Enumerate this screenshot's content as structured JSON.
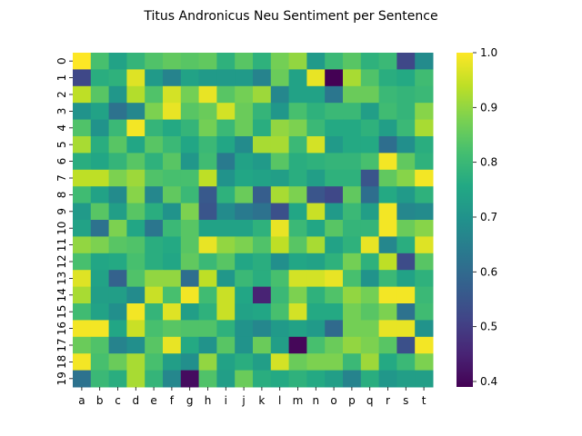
{
  "chart_data": {
    "type": "heatmap",
    "title": "Titus Andronicus Neu Sentiment per Sentence",
    "xlabel": "",
    "ylabel": "",
    "columns": [
      "a",
      "b",
      "c",
      "d",
      "e",
      "f",
      "g",
      "h",
      "i",
      "j",
      "k",
      "l",
      "m",
      "n",
      "o",
      "p",
      "q",
      "r",
      "s",
      "t"
    ],
    "rows": [
      "0",
      "1",
      "2",
      "3",
      "4",
      "5",
      "6",
      "7",
      "8",
      "9",
      "10",
      "11",
      "12",
      "13",
      "14",
      "15",
      "16",
      "17",
      "18",
      "19"
    ],
    "value_range": [
      0.39,
      1.0
    ],
    "colormap": "viridis",
    "colorbar_ticks": [
      "0.4",
      "0.5",
      "0.6",
      "0.7",
      "0.8",
      "0.9",
      "1.0"
    ],
    "colorbar_tick_values": [
      0.4,
      0.5,
      0.6,
      0.7,
      0.8,
      0.9,
      1.0
    ],
    "values": [
      [
        1.0,
        0.82,
        0.74,
        0.79,
        0.83,
        0.85,
        0.84,
        0.85,
        0.78,
        0.84,
        0.78,
        0.87,
        0.9,
        0.72,
        0.8,
        0.84,
        0.78,
        0.8,
        0.52,
        0.68
      ],
      [
        0.52,
        0.77,
        0.78,
        0.97,
        0.72,
        0.66,
        0.74,
        0.72,
        0.72,
        0.72,
        0.66,
        0.86,
        0.74,
        0.98,
        0.39,
        0.92,
        0.83,
        0.77,
        0.76,
        0.81
      ],
      [
        0.94,
        0.84,
        0.71,
        0.93,
        0.83,
        0.96,
        0.87,
        0.98,
        0.84,
        0.87,
        0.91,
        0.67,
        0.74,
        0.74,
        0.63,
        0.86,
        0.86,
        0.8,
        0.79,
        0.8
      ],
      [
        0.7,
        0.74,
        0.62,
        0.67,
        0.88,
        0.98,
        0.84,
        0.86,
        0.96,
        0.86,
        0.79,
        0.71,
        0.82,
        0.78,
        0.8,
        0.8,
        0.73,
        0.81,
        0.79,
        0.89
      ],
      [
        0.83,
        0.7,
        0.8,
        0.99,
        0.79,
        0.76,
        0.79,
        0.87,
        0.8,
        0.86,
        0.77,
        0.9,
        0.88,
        0.8,
        0.76,
        0.76,
        0.78,
        0.73,
        0.8,
        0.92
      ],
      [
        0.92,
        0.77,
        0.84,
        0.75,
        0.84,
        0.8,
        0.75,
        0.8,
        0.75,
        0.68,
        0.92,
        0.92,
        0.8,
        0.96,
        0.72,
        0.76,
        0.76,
        0.61,
        0.69,
        0.77
      ],
      [
        0.77,
        0.75,
        0.79,
        0.84,
        0.78,
        0.84,
        0.71,
        0.81,
        0.64,
        0.74,
        0.72,
        0.84,
        0.77,
        0.78,
        0.79,
        0.79,
        0.82,
        0.99,
        0.85,
        0.78
      ],
      [
        0.94,
        0.94,
        0.88,
        0.91,
        0.83,
        0.82,
        0.82,
        0.94,
        0.7,
        0.75,
        0.74,
        0.73,
        0.77,
        0.73,
        0.78,
        0.78,
        0.55,
        0.85,
        0.89,
        0.99
      ],
      [
        0.81,
        0.74,
        0.68,
        0.89,
        0.67,
        0.85,
        0.8,
        0.56,
        0.78,
        0.86,
        0.57,
        0.92,
        0.88,
        0.55,
        0.52,
        0.85,
        0.61,
        0.76,
        0.72,
        0.78
      ],
      [
        0.72,
        0.84,
        0.73,
        0.84,
        0.77,
        0.7,
        0.88,
        0.55,
        0.68,
        0.64,
        0.62,
        0.54,
        0.75,
        0.95,
        0.72,
        0.8,
        0.73,
        0.99,
        0.67,
        0.68
      ],
      [
        0.74,
        0.62,
        0.88,
        0.75,
        0.63,
        0.8,
        0.84,
        0.74,
        0.74,
        0.74,
        0.78,
        0.98,
        0.8,
        0.75,
        0.84,
        0.79,
        0.79,
        0.99,
        0.86,
        0.89
      ],
      [
        0.9,
        0.88,
        0.84,
        0.83,
        0.77,
        0.76,
        0.84,
        0.98,
        0.9,
        0.88,
        0.83,
        0.94,
        0.84,
        0.92,
        0.74,
        0.78,
        0.98,
        0.67,
        0.77,
        0.97
      ],
      [
        0.82,
        0.75,
        0.76,
        0.82,
        0.77,
        0.75,
        0.85,
        0.8,
        0.84,
        0.75,
        0.77,
        0.69,
        0.75,
        0.74,
        0.78,
        0.87,
        0.78,
        0.94,
        0.53,
        0.84
      ],
      [
        0.97,
        0.74,
        0.58,
        0.83,
        0.9,
        0.9,
        0.61,
        0.94,
        0.71,
        0.8,
        0.77,
        0.82,
        0.96,
        0.96,
        0.98,
        0.82,
        0.7,
        0.8,
        0.74,
        0.78
      ],
      [
        0.92,
        0.73,
        0.73,
        0.68,
        0.95,
        0.82,
        0.99,
        0.81,
        0.95,
        0.75,
        0.45,
        0.8,
        0.88,
        0.78,
        0.83,
        0.9,
        0.87,
        0.99,
        0.99,
        0.8
      ],
      [
        0.81,
        0.74,
        0.69,
        0.99,
        0.79,
        0.97,
        0.73,
        0.78,
        0.95,
        0.74,
        0.75,
        0.82,
        0.96,
        0.76,
        0.76,
        0.87,
        0.84,
        0.88,
        0.62,
        0.81
      ],
      [
        0.99,
        0.99,
        0.75,
        0.95,
        0.82,
        0.84,
        0.83,
        0.83,
        0.78,
        0.7,
        0.67,
        0.72,
        0.74,
        0.72,
        0.6,
        0.87,
        0.87,
        0.98,
        0.98,
        0.7
      ],
      [
        0.86,
        0.83,
        0.66,
        0.69,
        0.84,
        0.98,
        0.76,
        0.7,
        0.84,
        0.7,
        0.86,
        0.73,
        0.4,
        0.82,
        0.86,
        0.9,
        0.88,
        0.84,
        0.54,
        0.99
      ],
      [
        0.99,
        0.82,
        0.86,
        0.92,
        0.82,
        0.73,
        0.69,
        0.9,
        0.74,
        0.77,
        0.73,
        0.96,
        0.86,
        0.88,
        0.88,
        0.8,
        0.91,
        0.76,
        0.8,
        0.88
      ],
      [
        0.62,
        0.8,
        0.77,
        0.92,
        0.79,
        0.67,
        0.41,
        0.83,
        0.73,
        0.86,
        0.77,
        0.76,
        0.78,
        0.76,
        0.73,
        0.66,
        0.77,
        0.71,
        0.73,
        0.73
      ]
    ]
  }
}
